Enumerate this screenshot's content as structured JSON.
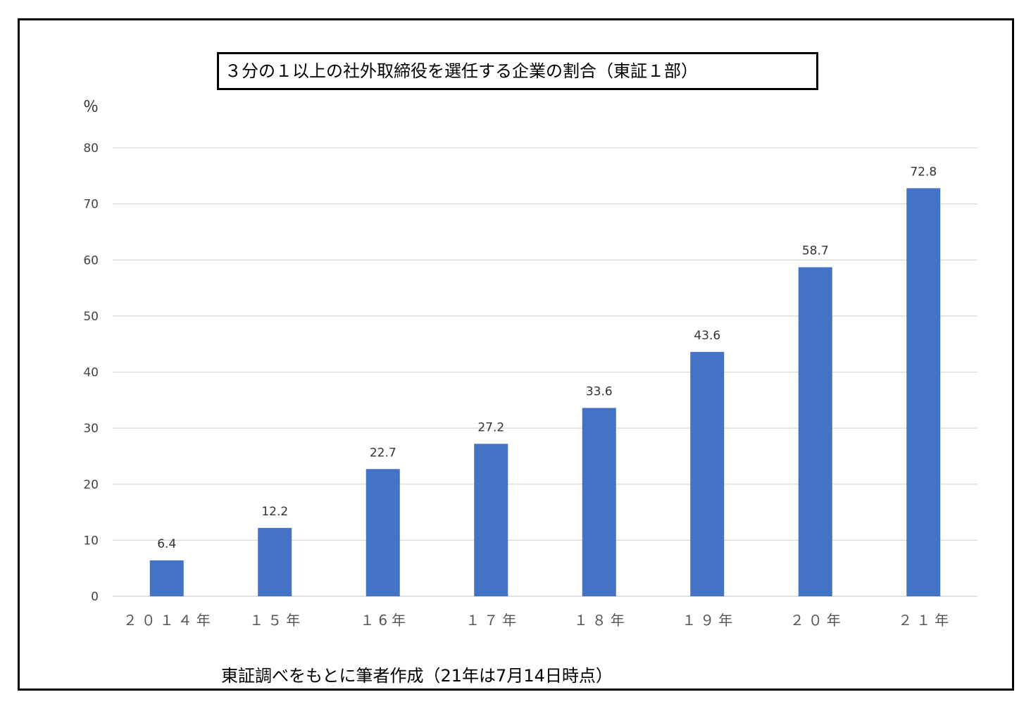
{
  "chart_data": {
    "type": "bar",
    "title": "３分の１以上の社外取締役を選任する企業の割合（東証１部）",
    "ylabel": "％",
    "xlabel": "",
    "categories": [
      "２０１４年",
      "１５年",
      "１6年",
      "１７年",
      "１８年",
      "１９年",
      "２０年",
      "２１年"
    ],
    "values": [
      6.4,
      12.2,
      22.7,
      27.2,
      33.6,
      43.6,
      58.7,
      72.8
    ],
    "value_labels": [
      "6.4",
      "12.2",
      "22.7",
      "27.2",
      "33.6",
      "43.6",
      "58.7",
      "72.8"
    ],
    "ylim": [
      0,
      80
    ],
    "yticks": [
      0,
      10,
      20,
      30,
      40,
      50,
      60,
      70,
      80
    ],
    "grid": true,
    "bar_color": "#4472c4",
    "grid_color": "#d9d9d9"
  },
  "footnote": "東証調べをもとに筆者作成（21年は7月14日時点）"
}
